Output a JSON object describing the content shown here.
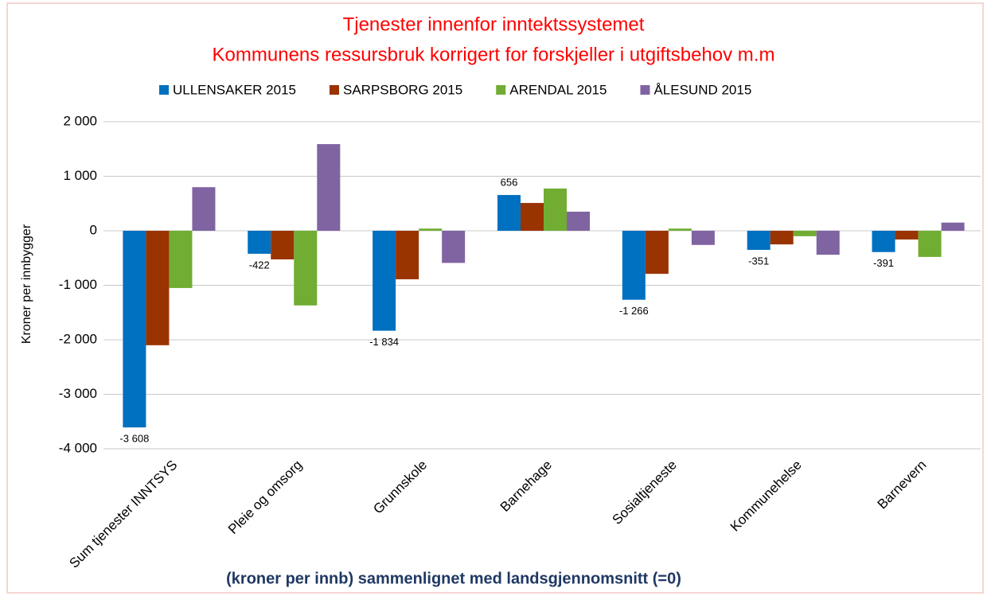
{
  "chart_data": {
    "type": "bar",
    "title": [
      "Tjenester innenfor inntektssystemet",
      "Kommunens ressursbruk korrigert for  forskjeller i utgiftsbehov m.m"
    ],
    "y_label": "Kroner per innbygger",
    "x_label": "(kroner per innb) sammenlignet med landsgjennomsnitt (=0)",
    "categories": [
      "Sum tjenester INNTSYS",
      "Pleie og omsorg",
      "Grunnskole",
      "Barnehage",
      "Sosialtjeneste",
      "Kommunehelse",
      "Barnevern"
    ],
    "series": [
      {
        "name": "ULLENSAKER 2015",
        "color": "#0070c0",
        "values": [
          -3608,
          -422,
          -1834,
          656,
          -1266,
          -351,
          -391
        ],
        "value_labels": [
          "-3 608",
          "-422",
          "-1 834",
          "656",
          "-1 266",
          "-351",
          "-391"
        ]
      },
      {
        "name": "SARPSBORG 2015",
        "color": "#993300",
        "values": [
          -2100,
          -525,
          -890,
          510,
          -790,
          -250,
          -160
        ]
      },
      {
        "name": "ARENDAL 2015",
        "color": "#70ad32",
        "values": [
          -1050,
          -1370,
          40,
          775,
          40,
          -100,
          -480
        ]
      },
      {
        "name": "ÅLESUND 2015",
        "color": "#8064a2",
        "values": [
          800,
          1590,
          -590,
          350,
          -260,
          -440,
          150
        ]
      }
    ],
    "ylim": [
      -4000,
      2000
    ],
    "yticks": [
      {
        "value": -4000,
        "label": "-4 000"
      },
      {
        "value": -3000,
        "label": "-3 000"
      },
      {
        "value": -2000,
        "label": "-2 000"
      },
      {
        "value": -1000,
        "label": "-1 000"
      },
      0,
      {
        "value": 1000,
        "label": "1 000"
      },
      {
        "value": 2000,
        "label": "2 000"
      }
    ],
    "grid": true,
    "legend": "top"
  }
}
